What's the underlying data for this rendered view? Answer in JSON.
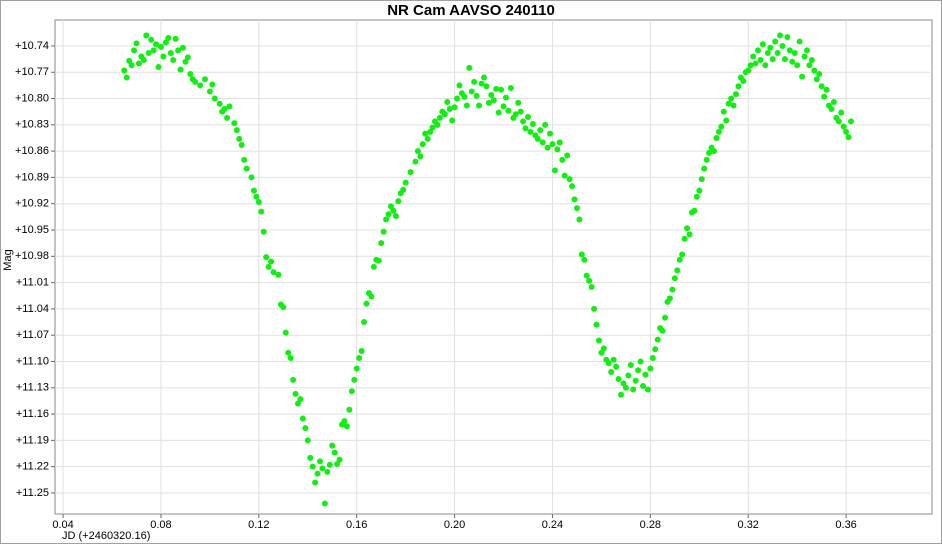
{
  "chart_data": {
    "type": "scatter",
    "title": "NR Cam AAVSO 240110",
    "x_label": "JD (+2460320.16)",
    "y_label": "Mag",
    "color": "#11ee11",
    "grid": true,
    "y_inverted": true,
    "xlim": [
      0.0367,
      0.3951
    ],
    "ylim": [
      10.7104,
      11.274
    ],
    "xticks": [
      0.04,
      0.08,
      0.12,
      0.16,
      {
        "value": 0.2,
        "label": "0.20"
      },
      0.24,
      0.28,
      0.32,
      0.36
    ],
    "yticks": [
      {
        "value": 10.74,
        "label": "+10.74"
      },
      {
        "value": 10.77,
        "label": "+10.77"
      },
      {
        "value": 10.8,
        "label": "+10.80"
      },
      {
        "value": 10.83,
        "label": "+10.83"
      },
      {
        "value": 10.86,
        "label": "+10.86"
      },
      {
        "value": 10.89,
        "label": "+10.89"
      },
      {
        "value": 10.92,
        "label": "+10.92"
      },
      {
        "value": 10.95,
        "label": "+10.95"
      },
      {
        "value": 10.98,
        "label": "+10.98"
      },
      {
        "value": 11.01,
        "label": "+11.01"
      },
      {
        "value": 11.04,
        "label": "+11.04"
      },
      {
        "value": 11.07,
        "label": "+11.07"
      },
      {
        "value": 11.1,
        "label": "+11.10"
      },
      {
        "value": 11.13,
        "label": "+11.13"
      },
      {
        "value": 11.16,
        "label": "+11.16"
      },
      {
        "value": 11.19,
        "label": "+11.19"
      },
      {
        "value": 11.22,
        "label": "+11.22"
      },
      {
        "value": 11.25,
        "label": "+11.25"
      }
    ],
    "x": [
      0.065,
      0.066,
      0.067,
      0.068,
      0.069,
      0.07,
      0.071,
      0.072,
      0.073,
      0.074,
      0.075,
      0.076,
      0.077,
      0.078,
      0.079,
      0.08,
      0.081,
      0.082,
      0.083,
      0.084,
      0.085,
      0.086,
      0.087,
      0.088,
      0.089,
      0.09,
      0.091,
      0.092,
      0.093,
      0.094,
      0.096,
      0.098,
      0.1,
      0.101,
      0.102,
      0.104,
      0.105,
      0.106,
      0.107,
      0.108,
      0.11,
      0.111,
      0.112,
      0.113,
      0.114,
      0.115,
      0.117,
      0.118,
      0.119,
      0.12,
      0.121,
      0.122,
      0.123,
      0.124,
      0.125,
      0.126,
      0.128,
      0.129,
      0.13,
      0.131,
      0.132,
      0.133,
      0.134,
      0.135,
      0.136,
      0.137,
      0.138,
      0.139,
      0.14,
      0.141,
      0.142,
      0.143,
      0.144,
      0.145,
      0.146,
      0.147,
      0.148,
      0.149,
      0.15,
      0.151,
      0.152,
      0.153,
      0.154,
      0.155,
      0.156,
      0.157,
      0.158,
      0.159,
      0.16,
      0.161,
      0.162,
      0.163,
      0.164,
      0.165,
      0.166,
      0.167,
      0.168,
      0.169,
      0.17,
      0.171,
      0.172,
      0.173,
      0.174,
      0.175,
      0.176,
      0.177,
      0.178,
      0.179,
      0.18,
      0.182,
      0.184,
      0.185,
      0.186,
      0.187,
      0.188,
      0.189,
      0.19,
      0.191,
      0.192,
      0.193,
      0.194,
      0.195,
      0.196,
      0.197,
      0.198,
      0.199,
      0.2,
      0.201,
      0.202,
      0.203,
      0.204,
      0.205,
      0.206,
      0.207,
      0.208,
      0.209,
      0.21,
      0.211,
      0.212,
      0.213,
      0.214,
      0.215,
      0.216,
      0.217,
      0.218,
      0.219,
      0.22,
      0.221,
      0.222,
      0.223,
      0.224,
      0.225,
      0.226,
      0.227,
      0.228,
      0.229,
      0.23,
      0.231,
      0.232,
      0.233,
      0.234,
      0.235,
      0.236,
      0.237,
      0.238,
      0.239,
      0.24,
      0.241,
      0.242,
      0.243,
      0.244,
      0.245,
      0.246,
      0.247,
      0.248,
      0.249,
      0.25,
      0.251,
      0.252,
      0.253,
      0.254,
      0.255,
      0.256,
      0.257,
      0.258,
      0.259,
      0.26,
      0.261,
      0.262,
      0.263,
      0.264,
      0.265,
      0.266,
      0.267,
      0.268,
      0.269,
      0.27,
      0.271,
      0.272,
      0.273,
      0.274,
      0.275,
      0.276,
      0.277,
      0.278,
      0.279,
      0.28,
      0.281,
      0.282,
      0.283,
      0.284,
      0.285,
      0.286,
      0.287,
      0.288,
      0.289,
      0.29,
      0.291,
      0.292,
      0.293,
      0.294,
      0.295,
      0.296,
      0.297,
      0.298,
      0.299,
      0.3,
      0.301,
      0.302,
      0.303,
      0.304,
      0.305,
      0.306,
      0.307,
      0.308,
      0.309,
      0.31,
      0.311,
      0.312,
      0.313,
      0.314,
      0.315,
      0.316,
      0.317,
      0.318,
      0.319,
      0.32,
      0.321,
      0.322,
      0.323,
      0.324,
      0.325,
      0.326,
      0.327,
      0.328,
      0.329,
      0.33,
      0.331,
      0.332,
      0.333,
      0.334,
      0.335,
      0.336,
      0.337,
      0.338,
      0.339,
      0.34,
      0.341,
      0.342,
      0.343,
      0.344,
      0.345,
      0.346,
      0.347,
      0.348,
      0.349,
      0.35,
      0.351,
      0.352,
      0.353,
      0.354,
      0.355,
      0.356,
      0.357,
      0.358,
      0.359,
      0.36,
      0.361,
      0.362
    ],
    "values": [
      10.768,
      10.776,
      10.757,
      10.762,
      10.745,
      10.737,
      10.76,
      10.752,
      10.756,
      10.728,
      10.748,
      10.733,
      10.745,
      10.738,
      10.764,
      10.741,
      10.752,
      10.736,
      10.731,
      10.748,
      10.756,
      10.732,
      10.745,
      10.767,
      10.742,
      10.758,
      10.753,
      10.772,
      10.778,
      10.781,
      10.785,
      10.778,
      10.792,
      10.784,
      10.8,
      10.806,
      10.815,
      10.812,
      10.822,
      10.809,
      10.828,
      10.836,
      10.846,
      10.853,
      10.87,
      10.88,
      10.89,
      10.905,
      10.912,
      10.918,
      10.929,
      10.952,
      10.981,
      10.992,
      10.986,
      10.998,
      11.001,
      11.035,
      11.038,
      11.067,
      11.09,
      11.096,
      11.121,
      11.137,
      11.148,
      11.143,
      11.165,
      11.176,
      11.19,
      11.21,
      11.22,
      11.238,
      11.228,
      11.214,
      11.222,
      11.262,
      11.226,
      11.218,
      11.196,
      11.204,
      11.217,
      11.212,
      11.172,
      11.168,
      11.174,
      11.155,
      11.134,
      11.121,
      11.108,
      11.096,
      11.088,
      11.055,
      11.034,
      11.022,
      11.026,
      10.992,
      10.984,
      10.985,
      10.965,
      10.952,
      10.938,
      10.932,
      10.923,
      10.928,
      10.934,
      10.917,
      10.908,
      10.904,
      10.896,
      10.884,
      10.872,
      10.86,
      10.866,
      10.852,
      10.84,
      10.846,
      10.838,
      10.833,
      10.826,
      10.83,
      10.822,
      10.815,
      10.818,
      10.804,
      10.812,
      10.825,
      10.81,
      10.8,
      10.785,
      10.794,
      10.798,
      10.808,
      10.765,
      10.792,
      10.781,
      10.797,
      10.808,
      10.783,
      10.776,
      10.786,
      10.805,
      10.796,
      10.802,
      10.789,
      10.816,
      10.79,
      10.809,
      10.799,
      10.814,
      10.788,
      10.822,
      10.818,
      10.805,
      10.815,
      10.826,
      10.834,
      10.821,
      10.838,
      10.829,
      10.842,
      10.846,
      10.836,
      10.85,
      10.83,
      10.856,
      10.84,
      10.852,
      10.882,
      10.858,
      10.85,
      10.87,
      10.888,
      10.865,
      10.892,
      10.9,
      10.915,
      10.925,
      10.938,
      10.978,
      10.984,
      11.002,
      11.008,
      11.015,
      11.04,
      11.058,
      11.076,
      11.09,
      11.085,
      11.098,
      11.102,
      11.112,
      11.098,
      11.106,
      11.12,
      11.138,
      11.125,
      11.13,
      11.116,
      11.104,
      11.132,
      11.122,
      11.11,
      11.1,
      11.128,
      11.115,
      11.132,
      11.108,
      11.096,
      11.086,
      11.075,
      11.062,
      11.065,
      11.05,
      11.032,
      11.028,
      11.018,
      11.005,
      10.996,
      10.984,
      10.978,
      10.96,
      10.948,
      10.955,
      10.93,
      10.928,
      10.912,
      10.905,
      10.892,
      10.88,
      10.87,
      10.862,
      10.856,
      10.86,
      10.845,
      10.838,
      10.832,
      10.815,
      10.825,
      10.806,
      10.8,
      10.808,
      10.795,
      10.786,
      10.776,
      10.78,
      10.77,
      10.768,
      10.762,
      10.752,
      10.76,
      10.745,
      10.756,
      10.738,
      10.762,
      10.748,
      10.742,
      10.755,
      10.735,
      10.748,
      10.728,
      10.74,
      10.755,
      10.73,
      10.745,
      10.758,
      10.748,
      10.762,
      10.735,
      10.775,
      10.752,
      10.745,
      10.762,
      10.756,
      10.768,
      10.778,
      10.772,
      10.786,
      10.798,
      10.79,
      10.808,
      10.812,
      10.804,
      10.822,
      10.826,
      10.816,
      10.832,
      10.838,
      10.844,
      10.826
    ]
  }
}
